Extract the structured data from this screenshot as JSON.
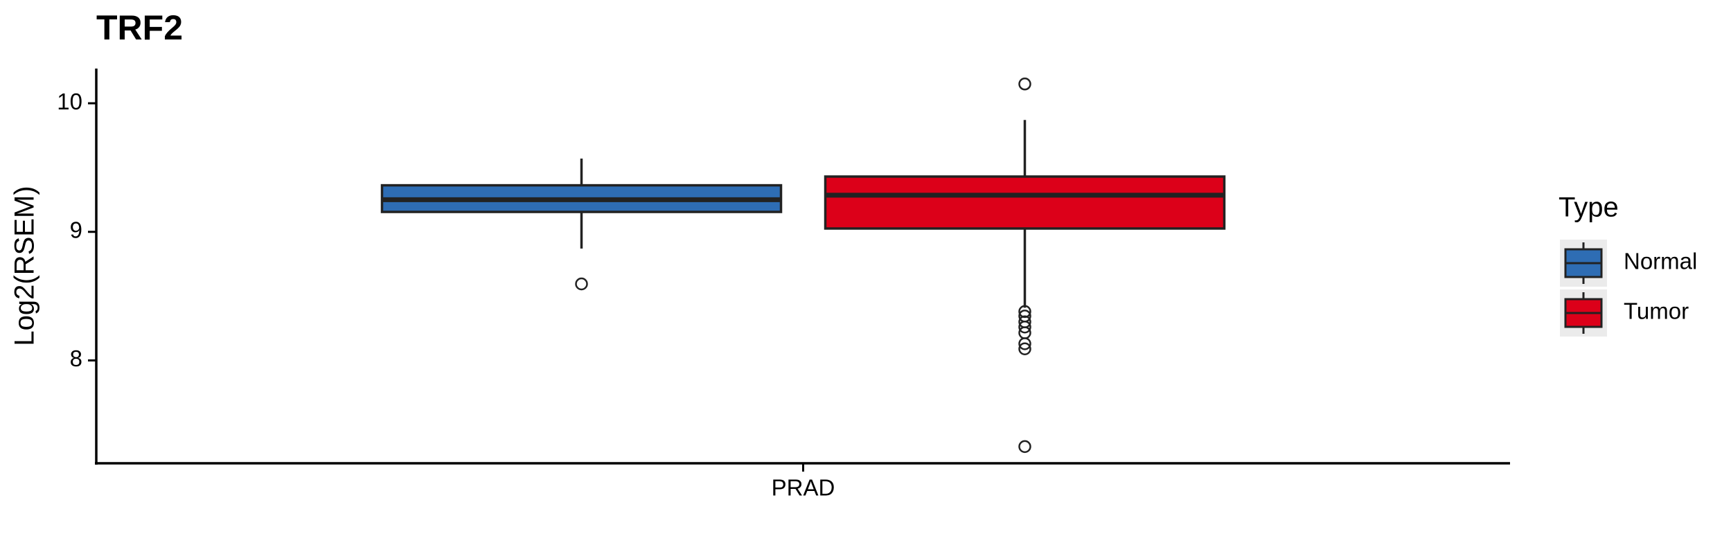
{
  "chart_data": {
    "type": "box",
    "title": "TRF2",
    "y_label": "Log2(RSEM)",
    "legend_title": "Type",
    "categories": [
      "PRAD"
    ],
    "series": [
      {
        "name": "Normal",
        "color": "#2e6db4",
        "values": [
          {
            "whislo": 8.87,
            "q1": 9.155,
            "med": 9.25,
            "q3": 9.362,
            "whishi": 9.57,
            "outliers": [
              8.595
            ]
          }
        ]
      },
      {
        "name": "Tumor",
        "color": "#dc0019",
        "values": [
          {
            "whislo": 8.41,
            "q1": 9.026,
            "med": 9.285,
            "q3": 9.43,
            "whishi": 9.87,
            "outliers": [
              10.15,
              8.38,
              8.345,
              8.3,
              8.26,
              8.215,
              8.13,
              8.09,
              7.33
            ]
          }
        ]
      }
    ],
    "ylim": [
      7.2,
      10.27
    ],
    "yticks": [
      8,
      9,
      10
    ],
    "grid": false,
    "legend_position": "right"
  }
}
